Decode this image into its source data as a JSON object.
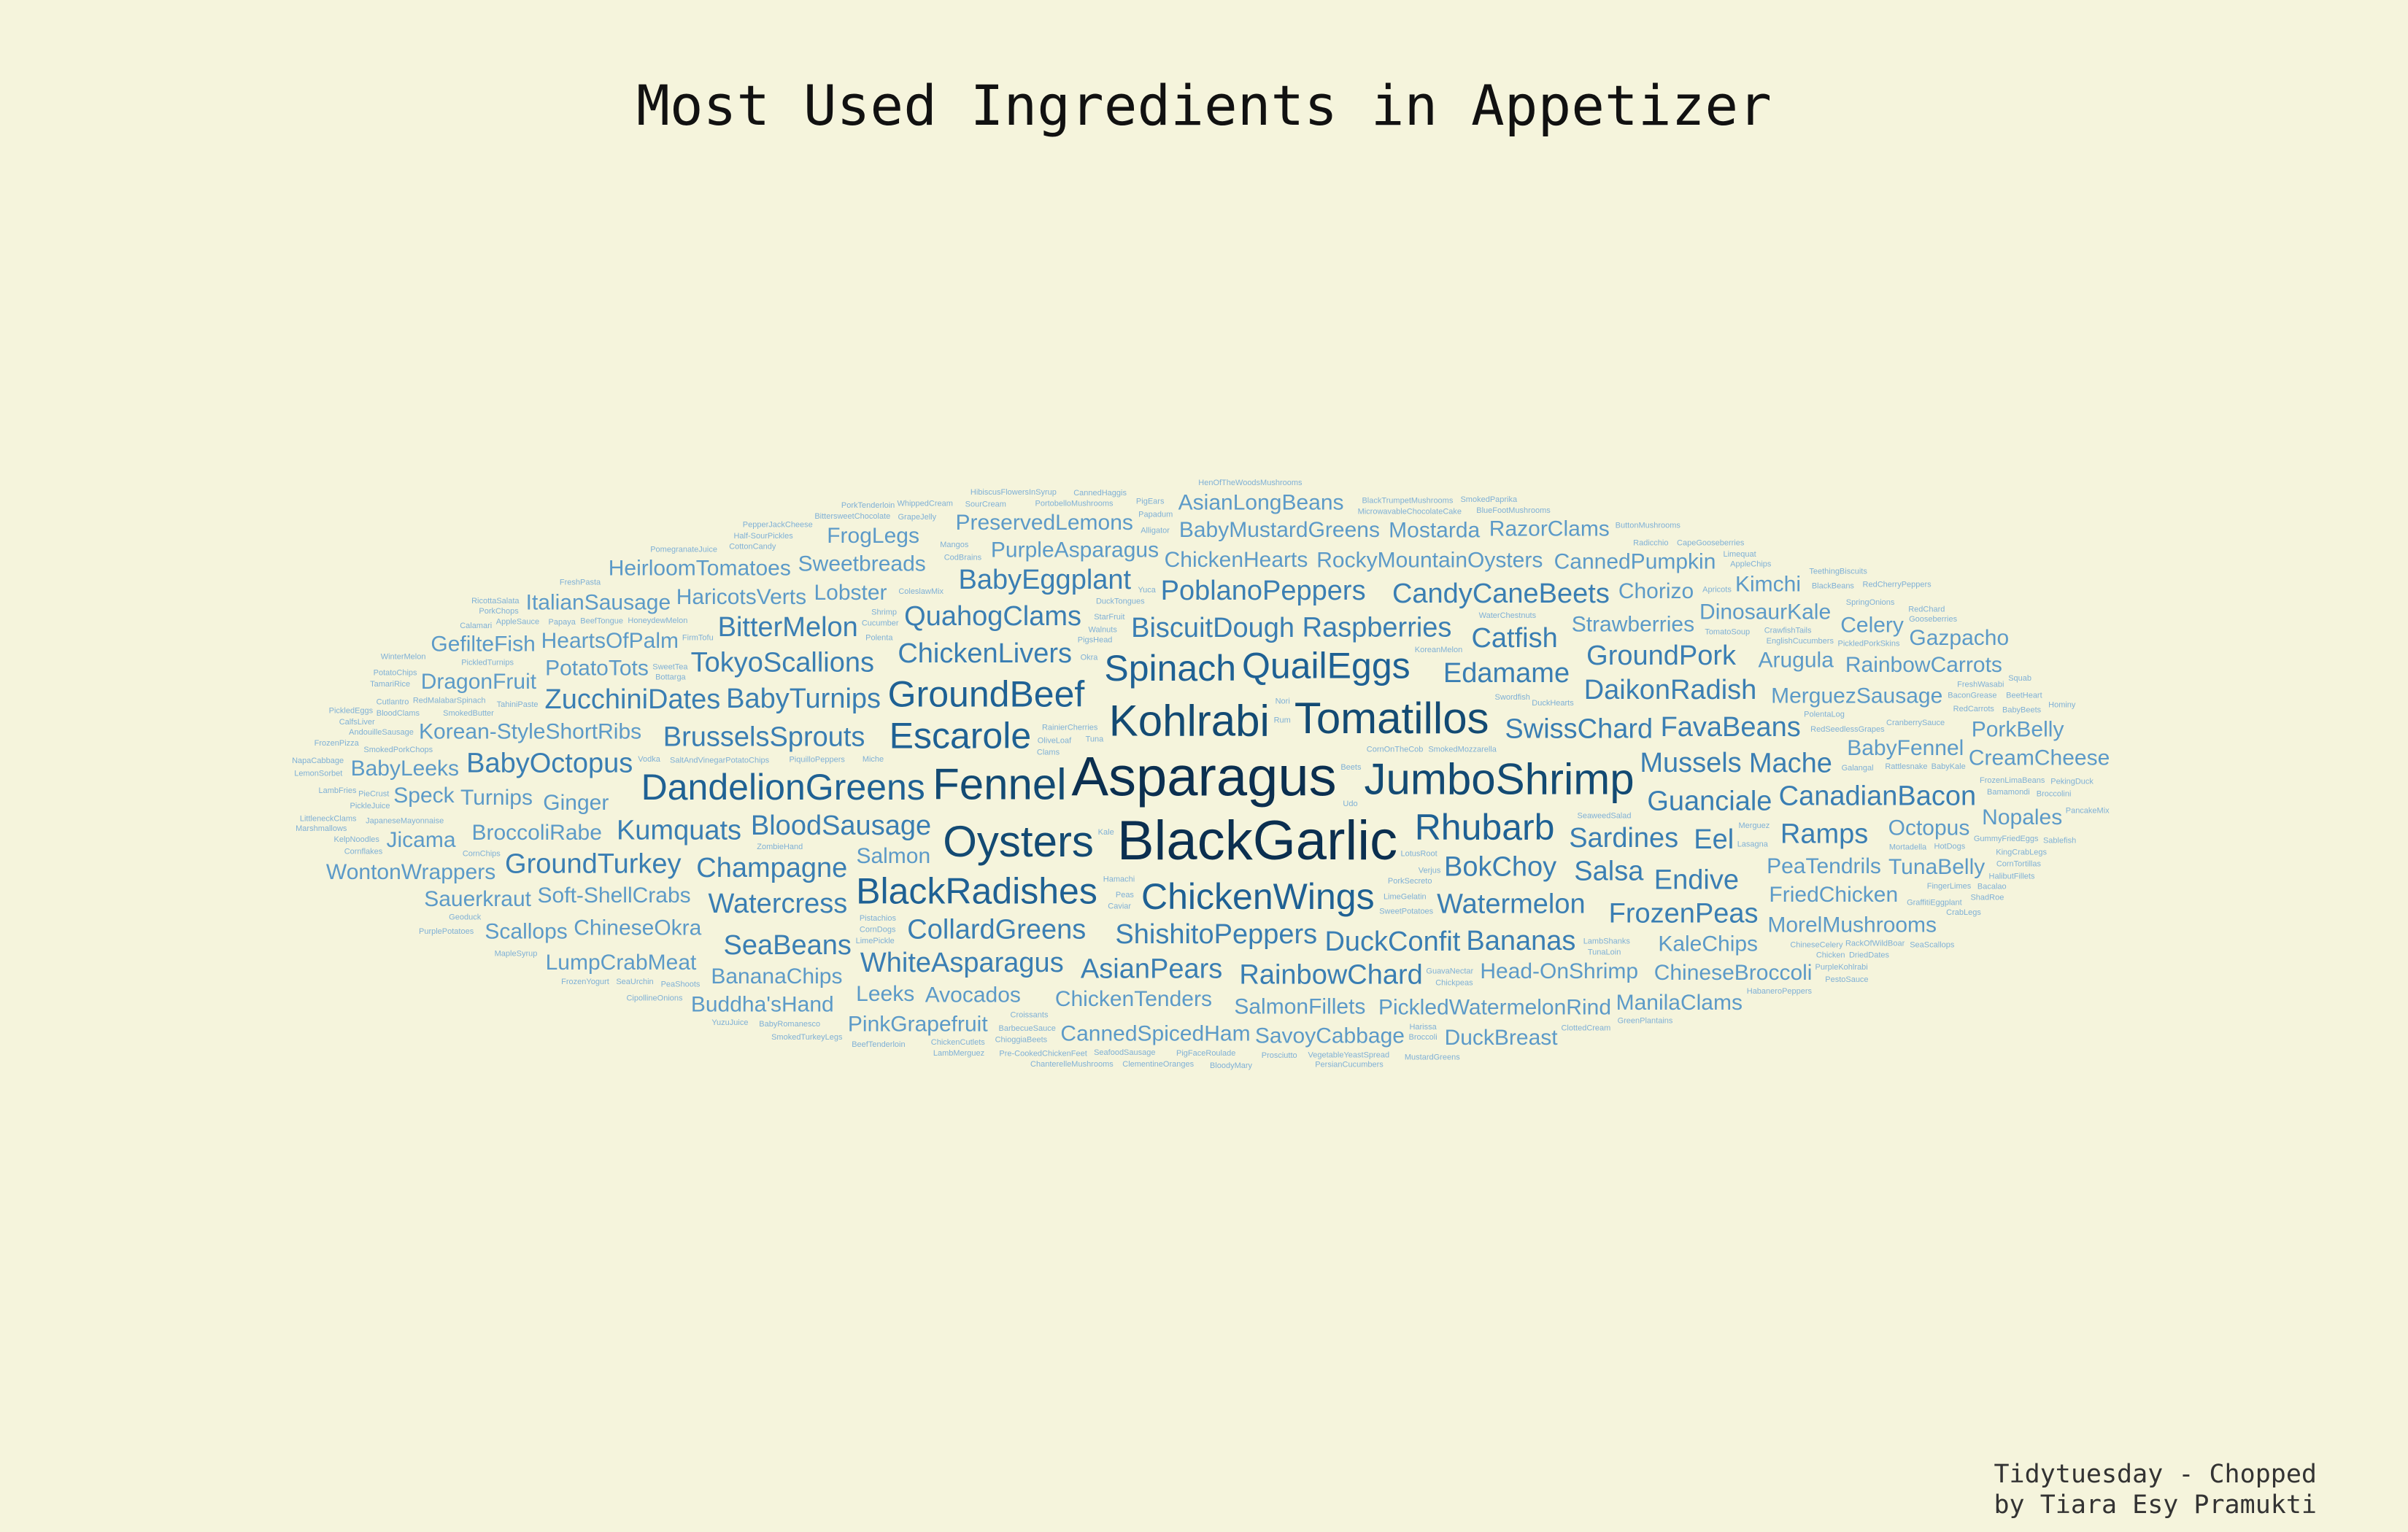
{
  "title": "Most Used Ingredients in Appetizer",
  "caption": {
    "line1": "Tidytuesday - Chopped",
    "line2": "by Tiara Esy Pramukti"
  },
  "colors": {
    "background": "#f5f4dc",
    "tier1": "#0b2f50",
    "tier2": "#134a73",
    "tier3": "#1f6194",
    "tier4": "#3a7eb3",
    "tier5": "#5c9ac8",
    "tier6": "#7fb0d6"
  },
  "words": [
    {
      "text": "Asparagus",
      "tier": 1
    },
    {
      "text": "BlackGarlic",
      "tier": 1
    },
    {
      "text": "Kohlrabi",
      "tier": 2
    },
    {
      "text": "Fennel",
      "tier": 2
    },
    {
      "text": "Tomatillos",
      "tier": 2
    },
    {
      "text": "JumboShrimp",
      "tier": 2
    },
    {
      "text": "Oysters",
      "tier": 2
    },
    {
      "text": "Escarole",
      "tier": 3
    },
    {
      "text": "Rhubarb",
      "tier": 3
    },
    {
      "text": "GroundBeef",
      "tier": 3
    },
    {
      "text": "Spinach",
      "tier": 3
    },
    {
      "text": "QuailEggs",
      "tier": 3
    },
    {
      "text": "ChickenWings",
      "tier": 3
    },
    {
      "text": "DandelionGreens",
      "tier": 3
    },
    {
      "text": "BlackRadishes",
      "tier": 3
    },
    {
      "text": "BloodSausage",
      "tier": 4
    },
    {
      "text": "SwissChard",
      "tier": 4
    },
    {
      "text": "BokChoy",
      "tier": 4
    },
    {
      "text": "BrusselsSprouts",
      "tier": 4
    },
    {
      "text": "ChickenLivers",
      "tier": 4
    },
    {
      "text": "Edamame",
      "tier": 4
    },
    {
      "text": "BiscuitDough",
      "tier": 4
    },
    {
      "text": "Sardines",
      "tier": 4
    },
    {
      "text": "ShishitoPeppers",
      "tier": 4
    },
    {
      "text": "BabyTurnips",
      "tier": 4
    },
    {
      "text": "Watermelon",
      "tier": 4
    },
    {
      "text": "Raspberries",
      "tier": 4
    },
    {
      "text": "Mussels",
      "tier": 4
    },
    {
      "text": "Champagne",
      "tier": 4
    },
    {
      "text": "CollardGreens",
      "tier": 4
    },
    {
      "text": "QuahogClams",
      "tier": 4
    },
    {
      "text": "DaikonRadish",
      "tier": 4
    },
    {
      "text": "TokyoScallions",
      "tier": 4
    },
    {
      "text": "DuckConfit",
      "tier": 4
    },
    {
      "text": "Salsa",
      "tier": 4
    },
    {
      "text": "FavaBeans",
      "tier": 4
    },
    {
      "text": "Guanciale",
      "tier": 4
    },
    {
      "text": "Catfish",
      "tier": 4
    },
    {
      "text": "Eel",
      "tier": 4
    },
    {
      "text": "Kumquats",
      "tier": 4
    },
    {
      "text": "PoblanoPeppers",
      "tier": 4
    },
    {
      "text": "GroundPork",
      "tier": 4
    },
    {
      "text": "Mache",
      "tier": 4
    },
    {
      "text": "Watercress",
      "tier": 4
    },
    {
      "text": "AsianPears",
      "tier": 4
    },
    {
      "text": "Endive",
      "tier": 4
    },
    {
      "text": "RainbowChard",
      "tier": 4
    },
    {
      "text": "WhiteAsparagus",
      "tier": 4
    },
    {
      "text": "BabyEggplant",
      "tier": 4
    },
    {
      "text": "ZucchiniDates",
      "tier": 4
    },
    {
      "text": "BitterMelon",
      "tier": 4
    },
    {
      "text": "Bananas",
      "tier": 4
    },
    {
      "text": "CandyCaneBeets",
      "tier": 4
    },
    {
      "text": "FrozenPeas",
      "tier": 4
    },
    {
      "text": "BabyOctopus",
      "tier": 4
    },
    {
      "text": "CanadianBacon",
      "tier": 4
    },
    {
      "text": "GroundTurkey",
      "tier": 4
    },
    {
      "text": "Ramps",
      "tier": 4
    },
    {
      "text": "SeaBeans",
      "tier": 4
    },
    {
      "text": "Ginger",
      "tier": 5
    },
    {
      "text": "Lobster",
      "tier": 5
    },
    {
      "text": "ChickenHearts",
      "tier": 5
    },
    {
      "text": "Korean-StyleShortRibs",
      "tier": 5
    },
    {
      "text": "Strawberries",
      "tier": 5
    },
    {
      "text": "ChickenTenders",
      "tier": 5
    },
    {
      "text": "PeaTendrils",
      "tier": 5
    },
    {
      "text": "Head-OnShrimp",
      "tier": 5
    },
    {
      "text": "RockyMountainOysters",
      "tier": 5
    },
    {
      "text": "Soft-ShellCrabs",
      "tier": 5
    },
    {
      "text": "MerguezSausage",
      "tier": 5
    },
    {
      "text": "PotatoTots",
      "tier": 5
    },
    {
      "text": "BroccoliRabe",
      "tier": 5
    },
    {
      "text": "PurpleAsparagus",
      "tier": 5
    },
    {
      "text": "BabyFennel",
      "tier": 5
    },
    {
      "text": "Arugula",
      "tier": 5
    },
    {
      "text": "SalmonFillets",
      "tier": 5
    },
    {
      "text": "HeartsOfPalm",
      "tier": 5
    },
    {
      "text": "KaleChips",
      "tier": 5
    },
    {
      "text": "Avocados",
      "tier": 5
    },
    {
      "text": "Sweetbreads",
      "tier": 5
    },
    {
      "text": "ChineseOkra",
      "tier": 5
    },
    {
      "text": "FriedChicken",
      "tier": 5
    },
    {
      "text": "HaricotsVerts",
      "tier": 5
    },
    {
      "text": "BabyMustardGreens",
      "tier": 5
    },
    {
      "text": "PickledWatermelonRind",
      "tier": 5
    },
    {
      "text": "CannedSpicedHam",
      "tier": 5
    },
    {
      "text": "Turnips",
      "tier": 5
    },
    {
      "text": "DinosaurKale",
      "tier": 5
    },
    {
      "text": "Octopus",
      "tier": 5
    },
    {
      "text": "BananaChips",
      "tier": 5
    },
    {
      "text": "MorelMushrooms",
      "tier": 5
    },
    {
      "text": "CannedPumpkin",
      "tier": 5
    },
    {
      "text": "DragonFruit",
      "tier": 5
    },
    {
      "text": "RainbowCarrots",
      "tier": 5
    },
    {
      "text": "ChineseBroccoli",
      "tier": 5
    },
    {
      "text": "PreservedLemons",
      "tier": 5
    },
    {
      "text": "TunaBelly",
      "tier": 5
    },
    {
      "text": "HeirloomTomatoes",
      "tier": 5
    },
    {
      "text": "PinkGrapefruit",
      "tier": 5
    },
    {
      "text": "Chorizo",
      "tier": 5
    },
    {
      "text": "Mostarda",
      "tier": 5
    },
    {
      "text": "Speck",
      "tier": 5
    },
    {
      "text": "ItalianSausage",
      "tier": 5
    },
    {
      "text": "SavoyCabbage",
      "tier": 5
    },
    {
      "text": "LumpCrabMeat",
      "tier": 5
    },
    {
      "text": "Buddha'sHand",
      "tier": 5
    },
    {
      "text": "Leeks",
      "tier": 5
    },
    {
      "text": "BabyLeeks",
      "tier": 5
    },
    {
      "text": "WontonWrappers",
      "tier": 5
    },
    {
      "text": "PorkBelly",
      "tier": 5
    },
    {
      "text": "CreamCheese",
      "tier": 5
    },
    {
      "text": "Jicama",
      "tier": 5
    },
    {
      "text": "Sauerkraut",
      "tier": 5
    },
    {
      "text": "FrogLegs",
      "tier": 5
    },
    {
      "text": "Scallops",
      "tier": 5
    },
    {
      "text": "GefilteFish",
      "tier": 5
    },
    {
      "text": "AsianLongBeans",
      "tier": 5
    },
    {
      "text": "Salmon",
      "tier": 5
    },
    {
      "text": "Kimchi",
      "tier": 5
    },
    {
      "text": "Nopales",
      "tier": 5
    },
    {
      "text": "Celery",
      "tier": 5
    },
    {
      "text": "DuckBreast",
      "tier": 5
    },
    {
      "text": "ManilaClams",
      "tier": 5
    },
    {
      "text": "RazorClams",
      "tier": 5
    },
    {
      "text": "Gazpacho",
      "tier": 5
    },
    {
      "text": "SmokedMozzarella",
      "tier": 6
    },
    {
      "text": "SaltAndVinegarPotatoChips",
      "tier": 6
    },
    {
      "text": "Tuna",
      "tier": 6
    },
    {
      "text": "RedSeedlessGrapes",
      "tier": 6
    },
    {
      "text": "RainierCherries",
      "tier": 6
    },
    {
      "text": "PiquilloPeppers",
      "tier": 6
    },
    {
      "text": "PorkSecreto",
      "tier": 6
    },
    {
      "text": "OliveLoaf",
      "tier": 6
    },
    {
      "text": "Swordfish",
      "tier": 6
    },
    {
      "text": "SeaweedSalad",
      "tier": 6
    },
    {
      "text": "LimeGelatin",
      "tier": 6
    },
    {
      "text": "KoreanMelon",
      "tier": 6
    },
    {
      "text": "SweetPotatoes",
      "tier": 6
    },
    {
      "text": "Rattlesnake",
      "tier": 6
    },
    {
      "text": "WaterChestnuts",
      "tier": 6
    },
    {
      "text": "TomatoSoup",
      "tier": 6
    },
    {
      "text": "CornOnTheCob",
      "tier": 6
    },
    {
      "text": "GuavaNectar",
      "tier": 6
    },
    {
      "text": "LotusRoot",
      "tier": 6
    },
    {
      "text": "DuckHearts",
      "tier": 6
    },
    {
      "text": "PigsHead",
      "tier": 6
    },
    {
      "text": "Pistachios",
      "tier": 6
    },
    {
      "text": "Verjus",
      "tier": 6
    },
    {
      "text": "HoneydewMelon",
      "tier": 6
    },
    {
      "text": "DuckTongues",
      "tier": 6
    },
    {
      "text": "SmokedButter",
      "tier": 6
    },
    {
      "text": "LambShanks",
      "tier": 6
    },
    {
      "text": "Walnuts",
      "tier": 6
    },
    {
      "text": "Hamachi",
      "tier": 6
    },
    {
      "text": "ColeslawMix",
      "tier": 6
    },
    {
      "text": "ChineseCelery",
      "tier": 6
    },
    {
      "text": "PolentaLog",
      "tier": 6
    },
    {
      "text": "RedMalabarSpinach",
      "tier": 6
    },
    {
      "text": "CranberrySauce",
      "tier": 6
    },
    {
      "text": "JapaneseMayonnaise",
      "tier": 6
    },
    {
      "text": "SmokedPorkChops",
      "tier": 6
    },
    {
      "text": "EnglishCucumbers",
      "tier": 6
    },
    {
      "text": "LimePickle",
      "tier": 6
    },
    {
      "text": "Cucumber",
      "tier": 6
    },
    {
      "text": "StarFruit",
      "tier": 6
    },
    {
      "text": "FirmTofu",
      "tier": 6
    },
    {
      "text": "BarbecueSauce",
      "tier": 6
    },
    {
      "text": "Merguez",
      "tier": 6
    },
    {
      "text": "Croissants",
      "tier": 6
    },
    {
      "text": "Chickpeas",
      "tier": 6
    },
    {
      "text": "CodBrains",
      "tier": 6
    },
    {
      "text": "TahiniPaste",
      "tier": 6
    },
    {
      "text": "PickledTurnips",
      "tier": 6
    },
    {
      "text": "GraffitiEggplant",
      "tier": 6
    },
    {
      "text": "CrawfishTails",
      "tier": 6
    },
    {
      "text": "Mortadella",
      "tier": 6
    },
    {
      "text": "BeefTongue",
      "tier": 6
    },
    {
      "text": "BaconGrease",
      "tier": 6
    },
    {
      "text": "Lasagna",
      "tier": 6
    },
    {
      "text": "Bamamondi",
      "tier": 6
    },
    {
      "text": "Mangos",
      "tier": 6
    },
    {
      "text": "CornDogs",
      "tier": 6
    },
    {
      "text": "MicrowavableChocolateCake",
      "tier": 6
    },
    {
      "text": "PortobelloMushrooms",
      "tier": 6
    },
    {
      "text": "GummyFriedEggs",
      "tier": 6
    },
    {
      "text": "TunaLoin",
      "tier": 6
    },
    {
      "text": "RedCarrots",
      "tier": 6
    },
    {
      "text": "FrozenLimaBeans",
      "tier": 6
    },
    {
      "text": "SeafoodSausage",
      "tier": 6
    },
    {
      "text": "PeaShoots",
      "tier": 6
    },
    {
      "text": "PickledPorkSkins",
      "tier": 6
    },
    {
      "text": "FingerLimes",
      "tier": 6
    },
    {
      "text": "PieCrust",
      "tier": 6
    },
    {
      "text": "ZombieHand",
      "tier": 6
    },
    {
      "text": "Galangal",
      "tier": 6
    },
    {
      "text": "BloodClams",
      "tier": 6
    },
    {
      "text": "Clams",
      "tier": 6
    },
    {
      "text": "Okra",
      "tier": 6
    },
    {
      "text": "Peas",
      "tier": 6
    },
    {
      "text": "Apricots",
      "tier": 6
    },
    {
      "text": "Vodka",
      "tier": 6
    },
    {
      "text": "AndouilleSausage",
      "tier": 6
    },
    {
      "text": "AppleSauce",
      "tier": 6
    },
    {
      "text": "Miche",
      "tier": 6
    },
    {
      "text": "Beets",
      "tier": 6
    },
    {
      "text": "HotDogs",
      "tier": 6
    },
    {
      "text": "SweetTea",
      "tier": 6
    },
    {
      "text": "Radicchio",
      "tier": 6
    },
    {
      "text": "ChioggiaBeets",
      "tier": 6
    },
    {
      "text": "PigFaceRoulade",
      "tier": 6
    },
    {
      "text": "RackOfWildBoar",
      "tier": 6
    },
    {
      "text": "CottonCandy",
      "tier": 6
    },
    {
      "text": "FreshWasabi",
      "tier": 6
    },
    {
      "text": "KingCrabLegs",
      "tier": 6
    },
    {
      "text": "VegetableYeastSpread",
      "tier": 6
    },
    {
      "text": "Polenta",
      "tier": 6
    },
    {
      "text": "PigEars",
      "tier": 6
    },
    {
      "text": "ChickenCutlets",
      "tier": 6
    },
    {
      "text": "BabyBeets",
      "tier": 6
    },
    {
      "text": "Shrimp",
      "tier": 6
    },
    {
      "text": "Kale",
      "tier": 6
    },
    {
      "text": "Broccolini",
      "tier": 6
    },
    {
      "text": "CornChips",
      "tier": 6
    },
    {
      "text": "Half-SourPickles",
      "tier": 6
    },
    {
      "text": "Cutlantro",
      "tier": 6
    },
    {
      "text": "GrapeJelly",
      "tier": 6
    },
    {
      "text": "Pre-CookedChickenFeet",
      "tier": 6
    },
    {
      "text": "PickleJuice",
      "tier": 6
    },
    {
      "text": "ClottedCream",
      "tier": 6
    },
    {
      "text": "BabyKale",
      "tier": 6
    },
    {
      "text": "Alligator",
      "tier": 6
    },
    {
      "text": "Chicken",
      "tier": 6
    },
    {
      "text": "AppleChips",
      "tier": 6
    },
    {
      "text": "Udo",
      "tier": 6
    },
    {
      "text": "Nori",
      "tier": 6
    },
    {
      "text": "Caviar",
      "tier": 6
    },
    {
      "text": "BeetHeart",
      "tier": 6
    },
    {
      "text": "CornTortillas",
      "tier": 6
    },
    {
      "text": "TamariRice",
      "tier": 6
    },
    {
      "text": "SpringOnions",
      "tier": 6
    },
    {
      "text": "SeaUrchin",
      "tier": 6
    },
    {
      "text": "SourCream",
      "tier": 6
    },
    {
      "text": "Harissa",
      "tier": 6
    },
    {
      "text": "Geoduck",
      "tier": 6
    },
    {
      "text": "Yuca",
      "tier": 6
    },
    {
      "text": "BlackBeans",
      "tier": 6
    },
    {
      "text": "BabyRomanesco",
      "tier": 6
    },
    {
      "text": "Broccoli",
      "tier": 6
    },
    {
      "text": "Bacalao",
      "tier": 6
    },
    {
      "text": "FreshPasta",
      "tier": 6
    },
    {
      "text": "ShadRoe",
      "tier": 6
    },
    {
      "text": "KelpNoodles",
      "tier": 6
    },
    {
      "text": "Prosciutto",
      "tier": 6
    },
    {
      "text": "PurpleKohlrabi",
      "tier": 6
    },
    {
      "text": "PomegranateJuice",
      "tier": 6
    },
    {
      "text": "MapleSyrup",
      "tier": 6
    },
    {
      "text": "BlackTrumpetMushrooms",
      "tier": 6
    },
    {
      "text": "Rum",
      "tier": 6
    },
    {
      "text": "Bottarga",
      "tier": 6
    },
    {
      "text": "Cornflakes",
      "tier": 6
    },
    {
      "text": "ClementineOranges",
      "tier": 6
    },
    {
      "text": "GreenPlantains",
      "tier": 6
    },
    {
      "text": "PotatoChips",
      "tier": 6
    },
    {
      "text": "BittersweetChocolate",
      "tier": 6
    },
    {
      "text": "BlueFootMushrooms",
      "tier": 6
    },
    {
      "text": "Papaya",
      "tier": 6
    },
    {
      "text": "DriedDates",
      "tier": 6
    },
    {
      "text": "CalfsLiver",
      "tier": 6
    },
    {
      "text": "CipollineOnions",
      "tier": 6
    },
    {
      "text": "Calamari",
      "tier": 6
    },
    {
      "text": "BeefTenderloin",
      "tier": 6
    },
    {
      "text": "CannedHaggis",
      "tier": 6
    },
    {
      "text": "Papadum",
      "tier": 6
    },
    {
      "text": "LambFries",
      "tier": 6
    },
    {
      "text": "WhippedCream",
      "tier": 6
    },
    {
      "text": "HibiscusFlowersInSyrup",
      "tier": 6
    },
    {
      "text": "HabaneroPeppers",
      "tier": 6
    },
    {
      "text": "LittleneckClams",
      "tier": 6
    },
    {
      "text": "FrozenPizza",
      "tier": 6
    },
    {
      "text": "ButtonMushrooms",
      "tier": 6
    },
    {
      "text": "CapeGooseberries",
      "tier": 6
    },
    {
      "text": "CrabLegs",
      "tier": 6
    },
    {
      "text": "Gooseberries",
      "tier": 6
    },
    {
      "text": "HalibutFillets",
      "tier": 6
    },
    {
      "text": "PepperJackCheese",
      "tier": 6
    },
    {
      "text": "TeethingBiscuits",
      "tier": 6
    },
    {
      "text": "Squab",
      "tier": 6
    },
    {
      "text": "LemonSorbet",
      "tier": 6
    },
    {
      "text": "PekingDuck",
      "tier": 6
    },
    {
      "text": "Limequat",
      "tier": 6
    },
    {
      "text": "Sablefish",
      "tier": 6
    },
    {
      "text": "LambMerguez",
      "tier": 6
    },
    {
      "text": "Hominy",
      "tier": 6
    },
    {
      "text": "ChanterelleMushrooms",
      "tier": 6
    },
    {
      "text": "MustardGreens",
      "tier": 6
    },
    {
      "text": "RicottaSalata",
      "tier": 6
    },
    {
      "text": "PickledEggs",
      "tier": 6
    },
    {
      "text": "PestoSauce",
      "tier": 6
    },
    {
      "text": "BloodyMary",
      "tier": 6
    },
    {
      "text": "PancakeMix",
      "tier": 6
    },
    {
      "text": "PersianCucumbers",
      "tier": 6
    },
    {
      "text": "FrozenYogurt",
      "tier": 6
    },
    {
      "text": "PorkTenderloin",
      "tier": 6
    },
    {
      "text": "WinterMelon",
      "tier": 6
    },
    {
      "text": "SmokedPaprika",
      "tier": 6
    },
    {
      "text": "PorkChops",
      "tier": 6
    },
    {
      "text": "NapaCabbage",
      "tier": 6
    },
    {
      "text": "Marshmallows",
      "tier": 6
    },
    {
      "text": "HenOfTheWoodsMushrooms",
      "tier": 6
    },
    {
      "text": "SeaScallops",
      "tier": 6
    },
    {
      "text": "PurplePotatoes",
      "tier": 6
    },
    {
      "text": "RedCherryPeppers",
      "tier": 6
    },
    {
      "text": "RedChard",
      "tier": 6
    },
    {
      "text": "SmokedTurkeyLegs",
      "tier": 6
    },
    {
      "text": "YuzuJuice",
      "tier": 6
    }
  ]
}
